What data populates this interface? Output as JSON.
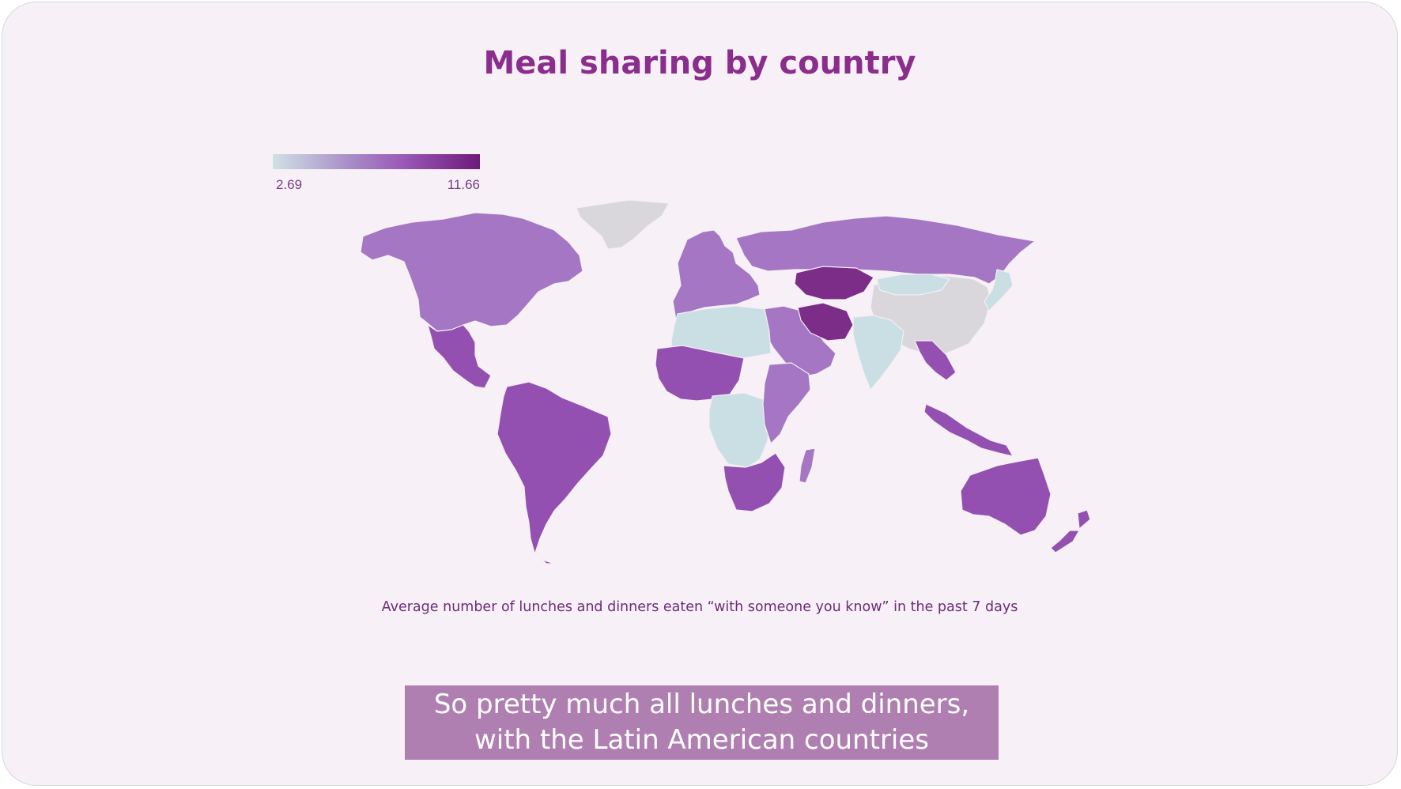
{
  "title": "Meal sharing by country",
  "legend": {
    "min_label": "2.69",
    "max_label": "11.66",
    "min_color": "#cfe1e4",
    "max_color": "#6e1a78"
  },
  "caption": "Average number of lunches and dinners eaten “with someone you know” in the past 7 days",
  "subtitle": {
    "line1": "So pretty much all lunches and dinners,",
    "line2": "with the Latin American countries"
  },
  "colors": {
    "no_data": "#d9d6dc",
    "low": "#c9dfe3",
    "mid": "#a476c3",
    "high": "#9350b0",
    "max": "#7b2d87"
  },
  "regions": [
    {
      "name": "Greenland",
      "shade": "no_data"
    },
    {
      "name": "North America",
      "shade": "mid"
    },
    {
      "name": "Mexico",
      "shade": "high"
    },
    {
      "name": "South America",
      "shade": "high"
    },
    {
      "name": "Europe",
      "shade": "mid"
    },
    {
      "name": "Russia",
      "shade": "mid"
    },
    {
      "name": "Kazakhstan",
      "shade": "max"
    },
    {
      "name": "China",
      "shade": "no_data"
    },
    {
      "name": "Mongolia",
      "shade": "low"
    },
    {
      "name": "India",
      "shade": "low"
    },
    {
      "name": "Middle East",
      "shade": "mid"
    },
    {
      "name": "Iran",
      "shade": "max"
    },
    {
      "name": "North Africa",
      "shade": "low"
    },
    {
      "name": "West Africa",
      "shade": "high"
    },
    {
      "name": "Central Africa",
      "shade": "low"
    },
    {
      "name": "East Africa",
      "shade": "mid"
    },
    {
      "name": "Southern Africa",
      "shade": "high"
    },
    {
      "name": "Madagascar",
      "shade": "mid"
    },
    {
      "name": "Southeast Asia",
      "shade": "high"
    },
    {
      "name": "Indonesia",
      "shade": "high"
    },
    {
      "name": "Japan",
      "shade": "low"
    },
    {
      "name": "Australia",
      "shade": "high"
    },
    {
      "name": "New Zealand",
      "shade": "high"
    }
  ]
}
